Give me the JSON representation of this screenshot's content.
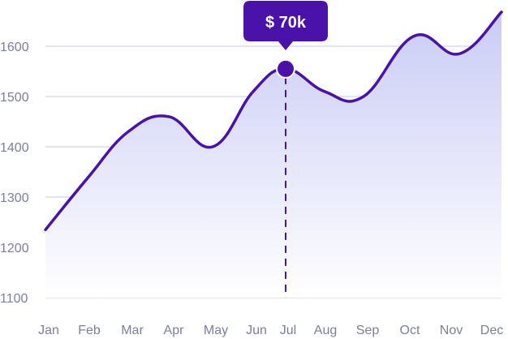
{
  "chart_data": {
    "type": "area",
    "categories": [
      "Jan",
      "Feb",
      "Mar",
      "Apr",
      "May",
      "Jun",
      "Jul",
      "Aug",
      "Sep",
      "Oct",
      "Nov",
      "Dec"
    ],
    "series": [
      {
        "values": [
          1235,
          1338,
          1430,
          1460,
          1400,
          1510,
          1555,
          1510,
          1500,
          1620,
          1585,
          1668
        ]
      }
    ],
    "yticks": [
      1100,
      1200,
      1300,
      1400,
      1500,
      1600
    ],
    "ylim": [
      1100,
      1670
    ],
    "grid": true,
    "highlight": {
      "category": "Jul",
      "value": 1555,
      "label": "$ 70k"
    },
    "colors": {
      "line": "#4a12a8",
      "area_top": "#c9cbf6",
      "area_bottom": "#ffffff",
      "grid": "#d9dbef",
      "tooltip": "#4a12a8",
      "tick_text": "#7b7f9e"
    }
  }
}
